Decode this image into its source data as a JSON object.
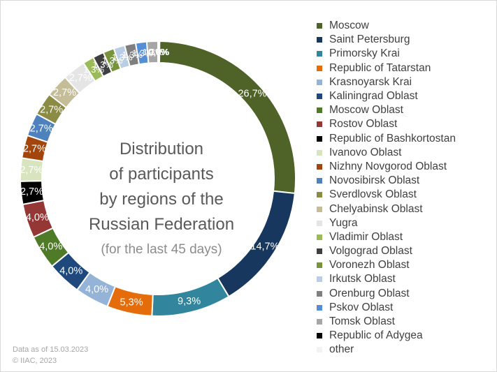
{
  "chart_data": {
    "type": "pie",
    "title_lines": [
      "Distribution",
      "of participants",
      "by regions of the",
      "Russian Federation"
    ],
    "subtitle": "(for the last 45 days)",
    "slices": [
      {
        "label": "Moscow",
        "value": 26.7,
        "display": "26,7%",
        "color": "#4f6228"
      },
      {
        "label": "Saint Petersburg",
        "value": 14.7,
        "display": "14,7%",
        "color": "#17375e"
      },
      {
        "label": "Primorsky Krai",
        "value": 9.3,
        "display": "9,3%",
        "color": "#31859c"
      },
      {
        "label": "Republic of Tatarstan",
        "value": 5.3,
        "display": "5,3%",
        "color": "#e46c0a"
      },
      {
        "label": "Krasnoyarsk Krai",
        "value": 4.0,
        "display": "4,0%",
        "color": "#95b3d7"
      },
      {
        "label": "Kaliningrad Oblast",
        "value": 4.0,
        "display": "4,0%",
        "color": "#1f497d"
      },
      {
        "label": "Moscow Oblast",
        "value": 4.0,
        "display": "4,0%",
        "color": "#4f7a28"
      },
      {
        "label": "Rostov Oblast",
        "value": 4.0,
        "display": "4,0%",
        "color": "#953735"
      },
      {
        "label": "Republic of Bashkortostan",
        "value": 2.7,
        "display": "2,7%",
        "color": "#000000"
      },
      {
        "label": "Ivanovo Oblast",
        "value": 2.7,
        "display": "2,7%",
        "color": "#d7e4bd"
      },
      {
        "label": "Nizhny Novgorod Oblast",
        "value": 2.7,
        "display": "2,7%",
        "color": "#a2460e"
      },
      {
        "label": "Novosibirsk Oblast",
        "value": 2.7,
        "display": "2,7%",
        "color": "#4f81bd"
      },
      {
        "label": "Sverdlovsk Oblast",
        "value": 2.7,
        "display": "2,7%",
        "color": "#8b8b45"
      },
      {
        "label": "Chelyabinsk Oblast",
        "value": 2.7,
        "display": "2,7%",
        "color": "#c4bd97"
      },
      {
        "label": "Yugra",
        "value": 2.7,
        "display": "2,7%",
        "color": "#e5e5e5"
      },
      {
        "label": "Vladimir Oblast",
        "value": 1.3,
        "display": "1,3%",
        "color": "#9bbb59"
      },
      {
        "label": "Volgograd Oblast",
        "value": 1.3,
        "display": "1,3%",
        "color": "#3f3f3f"
      },
      {
        "label": "Voronezh Oblast",
        "value": 1.3,
        "display": "1,3%",
        "color": "#77933c"
      },
      {
        "label": "Irkutsk Oblast",
        "value": 1.3,
        "display": "1,3%",
        "color": "#b9cde5"
      },
      {
        "label": "Orenburg Oblast",
        "value": 1.3,
        "display": "1,3%",
        "color": "#7f7f7f"
      },
      {
        "label": "Pskov Oblast",
        "value": 1.3,
        "display": "1,3%",
        "color": "#558ed5"
      },
      {
        "label": "Tomsk Oblast",
        "value": 1.3,
        "display": "1,3%",
        "color": "#a6a6a6"
      },
      {
        "label": "Republic of Adygea",
        "value": 0.0,
        "display": "0,0%",
        "color": "#000000"
      },
      {
        "label": "other",
        "value": 0.0,
        "display": "0,0%",
        "color": "#f2f2f2"
      }
    ],
    "legend_position": "right"
  },
  "footer": {
    "date_note": "Data as of 15.03.2023",
    "copyright": "© IIAC, 2023"
  }
}
